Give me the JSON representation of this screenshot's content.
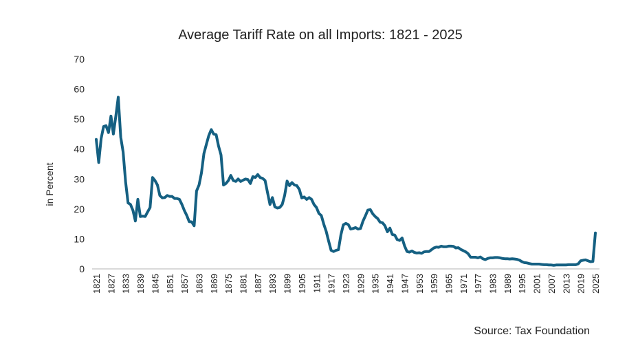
{
  "chart_data": {
    "type": "line",
    "title": "Average Tariff Rate on all Imports: 1821 - 2025",
    "xlabel": "",
    "ylabel": "in Percent",
    "source": "Source: Tax Foundation",
    "ylim": [
      0,
      70
    ],
    "xlim": [
      1821,
      2025
    ],
    "y_ticks": [
      "0",
      "10",
      "20",
      "30",
      "40",
      "50",
      "60",
      "70"
    ],
    "x_ticks": [
      "1821",
      "1827",
      "1833",
      "1839",
      "1845",
      "1851",
      "1857",
      "1863",
      "1869",
      "1875",
      "1881",
      "1887",
      "1893",
      "1899",
      "1905",
      "1911",
      "1917",
      "1923",
      "1929",
      "1935",
      "1941",
      "1947",
      "1953",
      "1959",
      "1965",
      "1971",
      "1977",
      "1983",
      "1989",
      "1995",
      "2001",
      "2007",
      "2013",
      "2019",
      "2025"
    ],
    "grid": false,
    "legend": "none",
    "line_color": "#156082",
    "axis_color": "#d9d9d9",
    "x": [
      1821,
      1822,
      1823,
      1824,
      1825,
      1826,
      1827,
      1828,
      1829,
      1830,
      1831,
      1832,
      1833,
      1834,
      1835,
      1836,
      1837,
      1838,
      1839,
      1840,
      1841,
      1842,
      1843,
      1844,
      1845,
      1846,
      1847,
      1848,
      1849,
      1850,
      1851,
      1852,
      1853,
      1854,
      1855,
      1856,
      1857,
      1858,
      1859,
      1860,
      1861,
      1862,
      1863,
      1864,
      1865,
      1866,
      1867,
      1868,
      1869,
      1870,
      1871,
      1872,
      1873,
      1874,
      1875,
      1876,
      1877,
      1878,
      1879,
      1880,
      1881,
      1882,
      1883,
      1884,
      1885,
      1886,
      1887,
      1888,
      1889,
      1890,
      1891,
      1892,
      1893,
      1894,
      1895,
      1896,
      1897,
      1898,
      1899,
      1900,
      1901,
      1902,
      1903,
      1904,
      1905,
      1906,
      1907,
      1908,
      1909,
      1910,
      1911,
      1912,
      1913,
      1914,
      1915,
      1916,
      1917,
      1918,
      1919,
      1920,
      1921,
      1922,
      1923,
      1924,
      1925,
      1926,
      1927,
      1928,
      1929,
      1930,
      1931,
      1932,
      1933,
      1934,
      1935,
      1936,
      1937,
      1938,
      1939,
      1940,
      1941,
      1942,
      1943,
      1944,
      1945,
      1946,
      1947,
      1948,
      1949,
      1950,
      1951,
      1952,
      1953,
      1954,
      1955,
      1956,
      1957,
      1958,
      1959,
      1960,
      1961,
      1962,
      1963,
      1964,
      1965,
      1966,
      1967,
      1968,
      1969,
      1970,
      1971,
      1972,
      1973,
      1974,
      1975,
      1976,
      1977,
      1978,
      1979,
      1980,
      1981,
      1982,
      1983,
      1984,
      1985,
      1986,
      1987,
      1988,
      1989,
      1990,
      1991,
      1992,
      1993,
      1994,
      1995,
      1996,
      1997,
      1998,
      1999,
      2000,
      2001,
      2002,
      2003,
      2004,
      2005,
      2006,
      2007,
      2008,
      2009,
      2010,
      2011,
      2012,
      2013,
      2014,
      2015,
      2016,
      2017,
      2018,
      2019,
      2020,
      2021,
      2022,
      2023,
      2024,
      2025
    ],
    "y": [
      43.2,
      35.5,
      43.5,
      47.5,
      47.8,
      45.5,
      51,
      45,
      51,
      57.3,
      44,
      39,
      29,
      22,
      21.5,
      19.5,
      16,
      23.2,
      17.5,
      17.6,
      17.5,
      19,
      20.5,
      30.5,
      29.5,
      28,
      24.5,
      23.7,
      23.8,
      24.5,
      24.2,
      24.2,
      23.5,
      23.5,
      23.2,
      21.5,
      19.5,
      17.8,
      15.8,
      15.7,
      14.4,
      26,
      28,
      32,
      38.5,
      41.5,
      44.5,
      46.5,
      45,
      44.8,
      41,
      38,
      28,
      28.5,
      29.5,
      31.2,
      29.5,
      29.2,
      30,
      29.2,
      29.6,
      30,
      29.8,
      28.5,
      30.8,
      30.5,
      31.5,
      30.5,
      30.2,
      29.5,
      25.5,
      21.5,
      23.8,
      20.7,
      20.3,
      20.5,
      21.5,
      24.5,
      29.3,
      27.8,
      28.8,
      28,
      27.8,
      26.5,
      23.7,
      24,
      23.2,
      23.8,
      23.2,
      21.5,
      20.5,
      18.5,
      17.8,
      14.9,
      12.5,
      9.2,
      6.2,
      5.8,
      6.2,
      6.4,
      11.4,
      14.7,
      15.2,
      14.8,
      13.3,
      13.5,
      13.8,
      13.3,
      13.5,
      15.9,
      17.7,
      19.6,
      19.8,
      18.4,
      17.5,
      16.8,
      15.6,
      15.4,
      14.4,
      12.4,
      13.6,
      11.5,
      11.3,
      9.8,
      9.5,
      10.3,
      7.7,
      5.8,
      5.6,
      6.0,
      5.5,
      5.3,
      5.4,
      5.2,
      5.7,
      5.8,
      5.8,
      6.4,
      7.0,
      7.3,
      7.2,
      7.6,
      7.4,
      7.4,
      7.6,
      7.6,
      7.5,
      7.0,
      7.1,
      6.5,
      6.1,
      5.7,
      5.1,
      3.9,
      3.9,
      3.9,
      3.7,
      4.0,
      3.4,
      3.1,
      3.5,
      3.7,
      3.7,
      3.8,
      3.8,
      3.7,
      3.5,
      3.4,
      3.4,
      3.3,
      3.4,
      3.3,
      3.2,
      2.9,
      2.4,
      2.1,
      2.0,
      1.8,
      1.6,
      1.6,
      1.6,
      1.6,
      1.5,
      1.4,
      1.4,
      1.3,
      1.3,
      1.2,
      1.3,
      1.3,
      1.3,
      1.3,
      1.3,
      1.4,
      1.4,
      1.4,
      1.4,
      1.7,
      2.7,
      2.9,
      3.0,
      2.7,
      2.4,
      2.5,
      12.0
    ]
  }
}
